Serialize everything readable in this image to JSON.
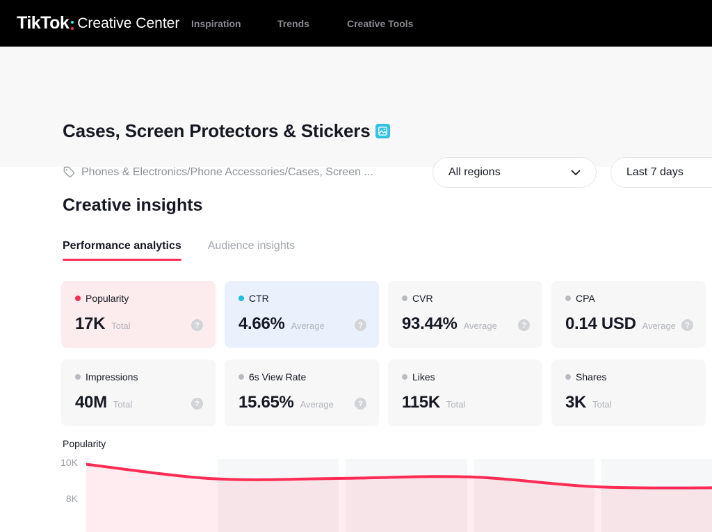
{
  "nav": {
    "logo_bold": "TikTok",
    "logo_rest": "Creative Center",
    "items": [
      {
        "label": "Inspiration"
      },
      {
        "label": "Trends"
      },
      {
        "label": "Creative Tools"
      }
    ]
  },
  "header": {
    "title": "Cases, Screen Protectors & Stickers",
    "breadcrumb": "Phones & Electronics/Phone Accessories/Cases, Screen ...",
    "region_select": "All regions",
    "date_select": "Last 7 days"
  },
  "insights": {
    "title": "Creative insights",
    "tabs": [
      {
        "label": "Performance analytics",
        "active": true
      },
      {
        "label": "Audience insights",
        "active": false
      }
    ]
  },
  "metrics": [
    {
      "name": "Popularity",
      "value": "17K",
      "unit": "Total",
      "dot_color": "#fe2c55",
      "bg": "#fdecee",
      "has_help": true
    },
    {
      "name": "CTR",
      "value": "4.66%",
      "unit": "Average",
      "dot_color": "#1fbddd",
      "bg": "#eaf1fc",
      "has_help": true
    },
    {
      "name": "CVR",
      "value": "93.44%",
      "unit": "Average",
      "dot_color": "#b9bbc0",
      "bg": "#f7f7f8",
      "has_help": true
    },
    {
      "name": "CPA",
      "value": "0.14 USD",
      "unit": "Average",
      "dot_color": "#b9bbc0",
      "bg": "#f7f7f8",
      "has_help": true
    },
    {
      "name": "Impressions",
      "value": "40M",
      "unit": "Total",
      "dot_color": "#b9bbc0",
      "bg": "#f7f7f8",
      "has_help": true
    },
    {
      "name": "6s View Rate",
      "value": "15.65%",
      "unit": "Average",
      "dot_color": "#b9bbc0",
      "bg": "#f7f7f8",
      "has_help": true
    },
    {
      "name": "Likes",
      "value": "115K",
      "unit": "Total",
      "dot_color": "#b9bbc0",
      "bg": "#f7f7f8",
      "has_help": false
    },
    {
      "name": "Shares",
      "value": "3K",
      "unit": "Total",
      "dot_color": "#b9bbc0",
      "bg": "#f7f7f8",
      "has_help": false
    }
  ],
  "chart": {
    "title": "Popularity",
    "yticks": {
      "t10k": "10K",
      "t8k": "8K"
    },
    "chart_data": {
      "type": "area",
      "title": "Popularity",
      "ylabel": "Popularity",
      "values": [
        9900,
        9100,
        9120,
        9200,
        8650,
        8600
      ],
      "x_note": "6 visible points of a Last-7-days daily series; x labels cut off below viewport",
      "ylim": [
        6000,
        10000
      ],
      "ytick_labels": [
        "10K",
        "8K"
      ],
      "line_color": "#fe2c55",
      "fill_color": "rgba(254,44,85,0.09)",
      "grid": false,
      "legend": false
    }
  },
  "colors": {
    "brand_red": "#fe2c55",
    "brand_cyan": "#25f4ee",
    "nav_bg": "#000000",
    "header_band_bg": "#f8f8f8",
    "card_pink": "#fdecee",
    "card_blue": "#eaf1fc",
    "card_gray": "#f7f7f8",
    "badge_cyan": "#35c2e2"
  }
}
